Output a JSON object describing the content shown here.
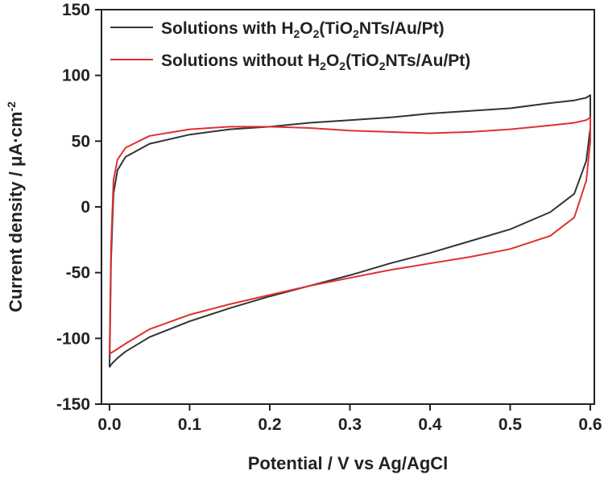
{
  "chart_data": {
    "type": "line",
    "xlabel": "Potential / V vs Ag/AgCl",
    "ylabel": "Current density / μA·cm",
    "ylabel_superscript": "-2",
    "xlim": [
      -0.01,
      0.605
    ],
    "ylim": [
      -150,
      150
    ],
    "x_ticks": [
      0.0,
      0.1,
      0.2,
      0.3,
      0.4,
      0.5,
      0.6
    ],
    "x_tick_labels": [
      "0.0",
      "0.1",
      "0.2",
      "0.3",
      "0.4",
      "0.5",
      "0.6"
    ],
    "y_ticks": [
      150,
      100,
      50,
      0,
      -50,
      -100,
      -150
    ],
    "y_tick_labels": [
      "150",
      "100",
      "50",
      "0",
      "-50",
      "-100",
      "-150"
    ],
    "grid": false,
    "legend_position": "top-left",
    "series": [
      {
        "name": "Solutions with H2O2(TiO2NTs/Au/Pt)",
        "legend_parts": [
          {
            "t": "Solutions with H",
            "sub": false
          },
          {
            "t": "2",
            "sub": true
          },
          {
            "t": "O",
            "sub": false
          },
          {
            "t": "2",
            "sub": true
          },
          {
            "t": "(TiO",
            "sub": false
          },
          {
            "t": "2",
            "sub": true
          },
          {
            "t": "NTs/Au/Pt)",
            "sub": false
          }
        ],
        "color": "#333333",
        "x": [
          0.0,
          0.002,
          0.005,
          0.01,
          0.02,
          0.05,
          0.1,
          0.15,
          0.2,
          0.25,
          0.3,
          0.35,
          0.4,
          0.45,
          0.5,
          0.55,
          0.58,
          0.595,
          0.6,
          0.6,
          0.595,
          0.58,
          0.55,
          0.5,
          0.45,
          0.4,
          0.35,
          0.3,
          0.25,
          0.2,
          0.15,
          0.1,
          0.05,
          0.02,
          0.01,
          0.005,
          0.002,
          0.0,
          0.0
        ],
        "y": [
          -122,
          -40,
          10,
          28,
          38,
          48,
          55,
          59,
          61,
          64,
          66,
          68,
          71,
          73,
          75,
          79,
          81,
          83,
          85,
          60,
          35,
          10,
          -4,
          -17,
          -26,
          -35,
          -43,
          -52,
          -60,
          -68,
          -77,
          -87,
          -99,
          -110,
          -115,
          -118,
          -120,
          -122,
          -122
        ]
      },
      {
        "name": "Solutions without H2O2(TiO2NTs/Au/Pt)",
        "legend_parts": [
          {
            "t": "Solutions without H",
            "sub": false
          },
          {
            "t": "2",
            "sub": true
          },
          {
            "t": "O",
            "sub": false
          },
          {
            "t": "2",
            "sub": true
          },
          {
            "t": "(TiO",
            "sub": false
          },
          {
            "t": "2",
            "sub": true
          },
          {
            "t": "NTs/Au/Pt)",
            "sub": false
          }
        ],
        "color": "#e03030",
        "x": [
          0.0,
          0.002,
          0.005,
          0.01,
          0.02,
          0.05,
          0.1,
          0.15,
          0.2,
          0.25,
          0.3,
          0.35,
          0.4,
          0.45,
          0.5,
          0.55,
          0.58,
          0.595,
          0.6,
          0.6,
          0.595,
          0.58,
          0.55,
          0.5,
          0.45,
          0.4,
          0.35,
          0.3,
          0.25,
          0.2,
          0.15,
          0.1,
          0.05,
          0.02,
          0.01,
          0.005,
          0.002,
          0.0,
          0.0
        ],
        "y": [
          -112,
          -30,
          20,
          36,
          45,
          54,
          59,
          61,
          61,
          60,
          58,
          57,
          56,
          57,
          59,
          62,
          64,
          66,
          68,
          50,
          20,
          -8,
          -22,
          -32,
          -38,
          -43,
          -48,
          -54,
          -60,
          -67,
          -74,
          -82,
          -93,
          -104,
          -108,
          -110,
          -111,
          -112,
          -112
        ]
      }
    ]
  }
}
